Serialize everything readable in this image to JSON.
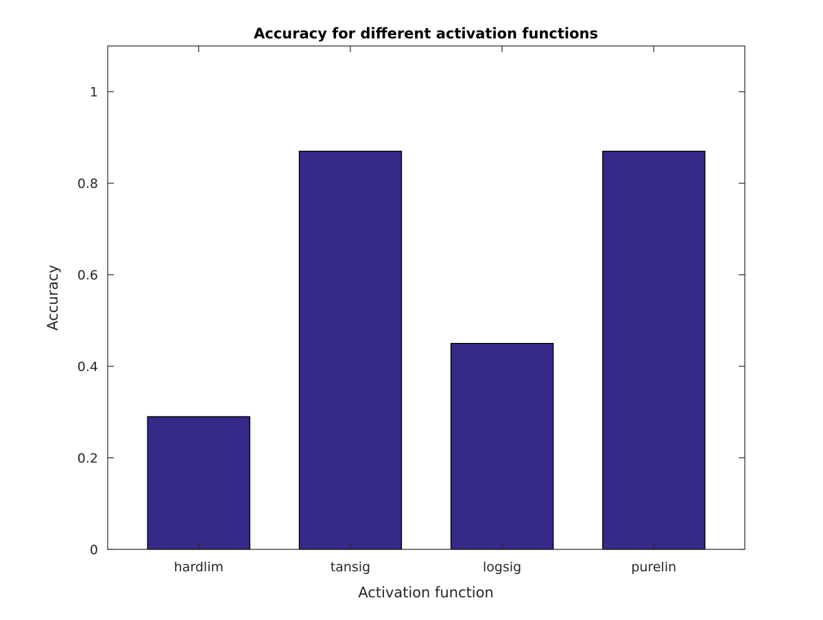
{
  "chart_data": {
    "type": "bar",
    "title": "Accuracy for different activation functions",
    "xlabel": "Activation function",
    "ylabel": "Accuracy",
    "categories": [
      "hardlim",
      "tansig",
      "logsig",
      "purelin"
    ],
    "values": [
      0.29,
      0.87,
      0.45,
      0.87
    ],
    "xlim": [
      0.4,
      4.6
    ],
    "ylim": [
      0,
      1.1
    ],
    "yticks": [
      0,
      0.2,
      0.4,
      0.6,
      0.8,
      1
    ],
    "ytick_labels": [
      "0",
      "0.2",
      "0.4",
      "0.6",
      "0.8",
      "1"
    ],
    "grid": false,
    "legend": "none",
    "colors": {
      "bar_fill": "#352a87",
      "bar_edge": "#000000",
      "axes": "#262626",
      "background": "#ffffff"
    }
  }
}
